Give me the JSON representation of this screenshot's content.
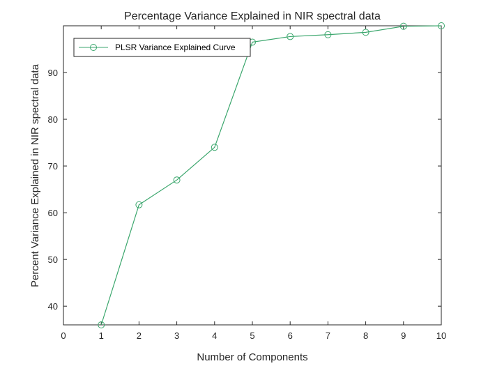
{
  "chart_data": {
    "type": "line",
    "title": "Percentage Variance Explained in NIR spectral data",
    "xlabel": "Number of Components",
    "ylabel": "Percent Variance Explained in NIR spectral data",
    "xlim": [
      0,
      10
    ],
    "ylim": [
      36,
      100
    ],
    "xticks": [
      "0",
      "1",
      "2",
      "3",
      "4",
      "5",
      "6",
      "7",
      "8",
      "9",
      "10"
    ],
    "yticks": [
      "40",
      "50",
      "60",
      "70",
      "80",
      "90"
    ],
    "grid": false,
    "legend_position": "top-left",
    "series": [
      {
        "name": "PLSR Variance Explained Curve",
        "color": "#3aa66c",
        "marker": "circle",
        "x": [
          1,
          2,
          3,
          4,
          5,
          6,
          7,
          8,
          9,
          10
        ],
        "y": [
          36,
          61.7,
          67,
          74,
          96.5,
          97.7,
          98.1,
          98.6,
          99.9,
          100
        ]
      }
    ]
  }
}
